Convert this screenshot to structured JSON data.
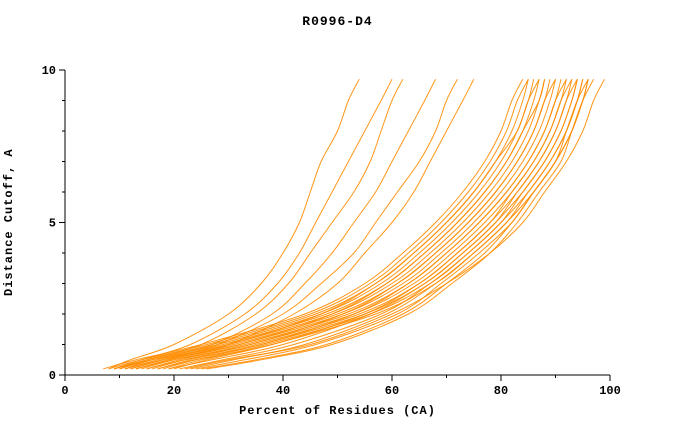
{
  "page": {
    "title": "R0996-D4"
  },
  "chart_data": {
    "type": "line",
    "title": "R0996-D4",
    "xlabel": "Percent of Residues (CA)",
    "ylabel": "Distance Cutoff, A",
    "xlim": [
      0,
      100
    ],
    "ylim": [
      0,
      10
    ],
    "x_ticks": [
      0,
      20,
      40,
      60,
      80,
      100
    ],
    "x_minor_ticks": [
      10,
      30,
      50,
      70,
      90
    ],
    "y_ticks": [
      0,
      5,
      10
    ],
    "y_minor_ticks": [
      1,
      2,
      3,
      4,
      6,
      7,
      8,
      9
    ],
    "grid": false,
    "legend": "none",
    "line_color": "#ff8c00",
    "axis_color": "#000000",
    "y_levels": [
      0.2,
      0.5,
      1,
      2,
      3,
      4,
      5,
      6,
      7,
      8,
      9,
      9.7
    ],
    "series": [
      {
        "x": [
          8,
          12,
          20,
          30,
          36,
          40,
          43,
          45,
          47,
          50,
          52,
          54
        ]
      },
      {
        "x": [
          9,
          14,
          23,
          33,
          39,
          43,
          46,
          49,
          52,
          55,
          58,
          60
        ]
      },
      {
        "x": [
          10,
          15,
          25,
          35,
          41,
          45,
          49,
          53,
          56,
          58,
          60,
          62
        ]
      },
      {
        "x": [
          11,
          16,
          27,
          38,
          44,
          49,
          53,
          57,
          60,
          63,
          66,
          68
        ]
      },
      {
        "x": [
          12,
          18,
          28,
          40,
          47,
          53,
          57,
          61,
          65,
          68,
          70,
          72
        ]
      },
      {
        "x": [
          13,
          19,
          30,
          42,
          50,
          55,
          60,
          64,
          67,
          70,
          73,
          75
        ]
      },
      {
        "x": [
          7,
          13,
          25,
          44,
          55,
          62,
          68,
          73,
          77,
          80,
          82,
          84
        ]
      },
      {
        "x": [
          8,
          14,
          26,
          45,
          56,
          63,
          69,
          74,
          78,
          81,
          83,
          85
        ]
      },
      {
        "x": [
          9,
          15,
          27,
          46,
          57,
          64,
          70,
          75,
          79,
          82,
          84,
          85
        ]
      },
      {
        "x": [
          10,
          16,
          28,
          47,
          58,
          65,
          71,
          76,
          80,
          83,
          85,
          86
        ]
      },
      {
        "x": [
          11,
          17,
          29,
          48,
          59,
          66,
          72,
          77,
          81,
          84,
          86,
          87
        ]
      },
      {
        "x": [
          12,
          18,
          30,
          49,
          60,
          67,
          73,
          78,
          82,
          85,
          87,
          88
        ]
      },
      {
        "x": [
          13,
          19,
          31,
          50,
          61,
          68,
          74,
          79,
          83,
          86,
          88,
          89
        ]
      },
      {
        "x": [
          14,
          20,
          32,
          51,
          62,
          69,
          75,
          80,
          84,
          87,
          89,
          90
        ]
      },
      {
        "x": [
          15,
          21,
          33,
          52,
          63,
          70,
          76,
          81,
          85,
          88,
          90,
          91
        ]
      },
      {
        "x": [
          16,
          22,
          34,
          53,
          64,
          71,
          77,
          82,
          86,
          89,
          91,
          92
        ]
      },
      {
        "x": [
          17,
          23,
          35,
          54,
          65,
          72,
          78,
          83,
          87,
          90,
          92,
          93
        ]
      },
      {
        "x": [
          18,
          24,
          36,
          55,
          66,
          73,
          79,
          84,
          88,
          91,
          93,
          94
        ]
      },
      {
        "x": [
          19,
          25,
          37,
          56,
          67,
          74,
          80,
          85,
          89,
          92,
          94,
          95
        ]
      },
      {
        "x": [
          20,
          26,
          38,
          57,
          68,
          75,
          81,
          86,
          90,
          93,
          95,
          96
        ]
      },
      {
        "x": [
          25,
          35,
          48,
          62,
          70,
          77,
          82,
          86,
          90,
          93,
          95,
          96
        ]
      },
      {
        "x": [
          22,
          30,
          45,
          60,
          70,
          78,
          84,
          88,
          92,
          95,
          97,
          99
        ]
      },
      {
        "x": [
          9,
          16,
          30,
          47,
          57,
          64,
          70,
          75,
          79,
          83,
          85,
          87
        ]
      },
      {
        "x": [
          11,
          18,
          32,
          49,
          59,
          66,
          72,
          77,
          81,
          84,
          87,
          88
        ]
      },
      {
        "x": [
          13,
          20,
          34,
          51,
          61,
          68,
          74,
          79,
          83,
          86,
          88,
          90
        ]
      },
      {
        "x": [
          15,
          22,
          36,
          53,
          63,
          70,
          76,
          81,
          85,
          88,
          90,
          92
        ]
      },
      {
        "x": [
          17,
          24,
          38,
          55,
          65,
          72,
          78,
          82,
          86,
          89,
          91,
          93
        ]
      },
      {
        "x": [
          19,
          27,
          40,
          56,
          66,
          73,
          79,
          83,
          87,
          90,
          92,
          94
        ]
      },
      {
        "x": [
          21,
          29,
          42,
          58,
          67,
          74,
          80,
          84,
          88,
          91,
          93,
          94
        ]
      },
      {
        "x": [
          23,
          31,
          44,
          59,
          68,
          75,
          81,
          85,
          89,
          92,
          94,
          95
        ]
      },
      {
        "x": [
          24,
          33,
          46,
          61,
          69,
          76,
          82,
          86,
          90,
          92,
          94,
          96
        ]
      },
      {
        "x": [
          26,
          36,
          49,
          63,
          71,
          78,
          83,
          87,
          91,
          93,
          95,
          97
        ]
      }
    ]
  }
}
